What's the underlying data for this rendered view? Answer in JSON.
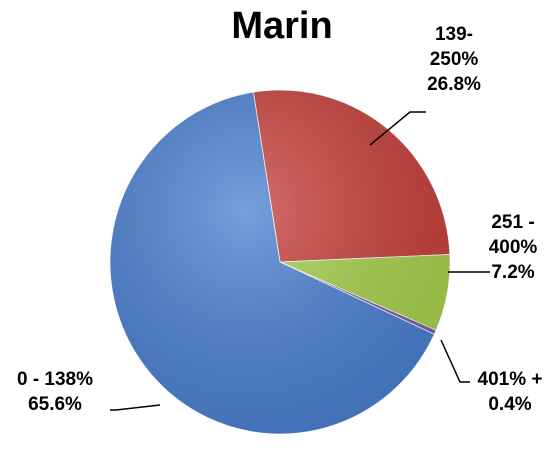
{
  "chart_data": {
    "type": "pie",
    "title": "Marin",
    "categories": [
      "139-250%",
      "251 - 400%",
      "401% +",
      "0 - 138%"
    ],
    "values": [
      26.8,
      7.2,
      0.4,
      65.6
    ],
    "value_labels": [
      "26.8%",
      "7.2%",
      "0.4%",
      "65.6%"
    ],
    "colors": [
      "#c8403c",
      "#a8d24c",
      "#7d5fa8",
      "#4b80d2"
    ]
  }
}
